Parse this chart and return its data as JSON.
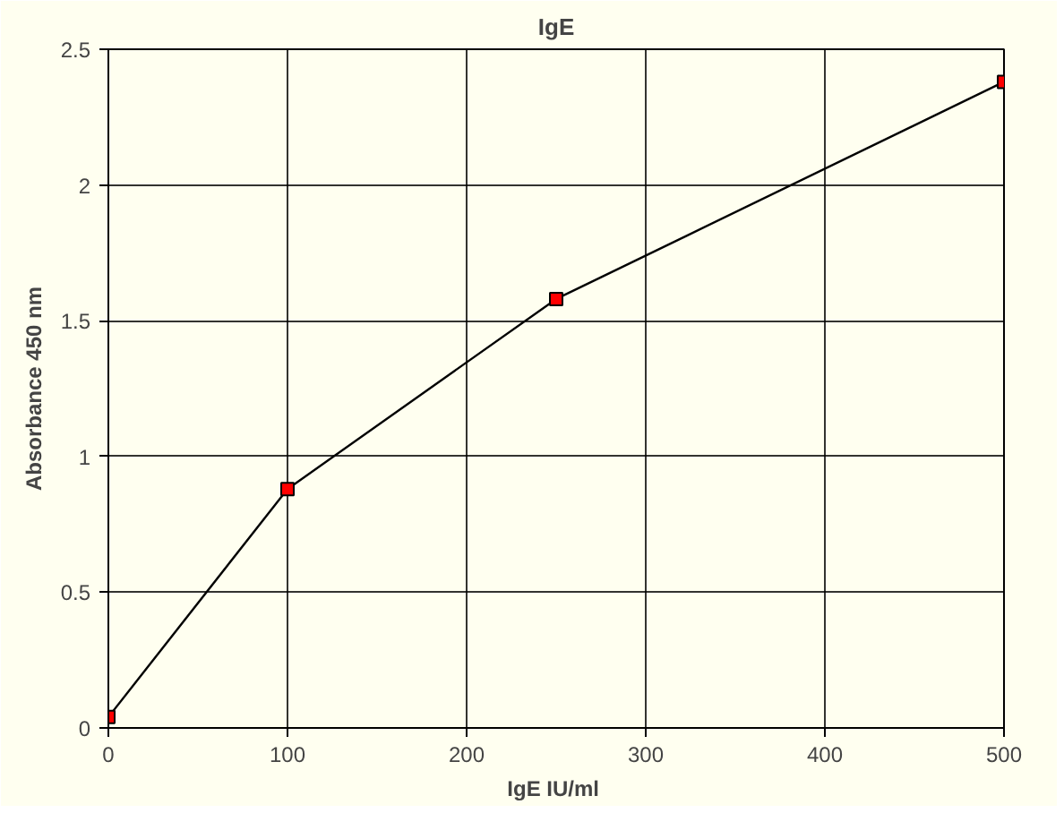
{
  "chart_data": {
    "type": "line",
    "title": "IgE",
    "xlabel": "IgE  IU/ml",
    "ylabel": "Absorbance 450 nm",
    "x": [
      0,
      100,
      250,
      500
    ],
    "series": [
      {
        "color": "#ff0000",
        "values": [
          0.04,
          0.88,
          1.58,
          2.38
        ]
      }
    ],
    "xlim": [
      0,
      500
    ],
    "xticks": [
      0,
      100,
      200,
      300,
      400,
      500
    ],
    "ylim": [
      0,
      2.5
    ],
    "yticks": [
      0,
      0.5,
      1,
      1.5,
      2,
      2.5
    ],
    "grid": true,
    "marker": "square",
    "line_style": "solid"
  }
}
